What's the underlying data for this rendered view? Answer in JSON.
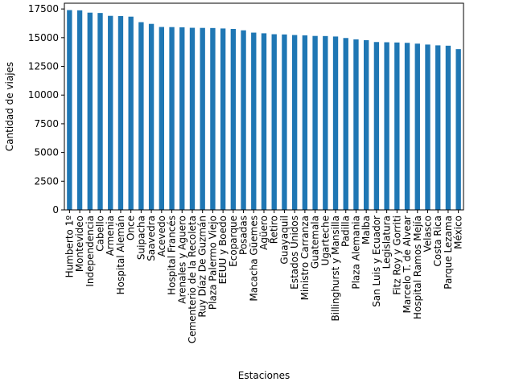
{
  "chart_data": {
    "type": "bar",
    "title": "",
    "xlabel": "Estaciones",
    "ylabel": "Cantidad de viajes",
    "ylim": [
      0,
      18000
    ],
    "yticks": [
      0,
      2500,
      5000,
      7500,
      10000,
      12500,
      15000,
      17500
    ],
    "ytick_labels": [
      "0",
      "2500",
      "5000",
      "7500",
      "10000",
      "12500",
      "15000",
      "17500"
    ],
    "grid": false,
    "legend": "none",
    "bar_color": "#1f77b4",
    "categories": [
      "Humberto 1º",
      "Montevideo",
      "Independencia",
      "Cabello",
      "Armenia",
      "Hospital Alemán",
      "Once",
      "Suipacha",
      "Saavedra",
      "Acevedo",
      "Hospital Francés",
      "Arenales y Aguero",
      "Cementerio de la Recoleta",
      "Ruy Díaz De Guzmán",
      "Plaza Palermo Viejo",
      "EEUU y Boedo",
      "Ecoparque",
      "Posadas",
      "Macacha Güemes",
      "Agüero",
      "Retiro",
      "Guayaquil",
      "Estados Unidos",
      "Ministro Carranza",
      "Guatemala",
      "Ugarteche",
      "Billinghurst y Mansilla",
      "Padilla",
      "Plaza Alemania",
      "Malba",
      "San Luis y Ecuador",
      "Legislatura",
      "Fitz Roy y Gorriti",
      "Marcelo T. de Alvear",
      "Hospital Ramos Mejía",
      "Velasco",
      "Costa Rica",
      "Parque Lezama",
      "México"
    ],
    "values": [
      17400,
      17380,
      17180,
      17150,
      16900,
      16880,
      16830,
      16350,
      16200,
      15930,
      15920,
      15900,
      15860,
      15850,
      15840,
      15800,
      15760,
      15640,
      15440,
      15380,
      15300,
      15280,
      15230,
      15200,
      15150,
      15140,
      15100,
      14970,
      14850,
      14780,
      14620,
      14600,
      14580,
      14550,
      14480,
      14400,
      14330,
      14300,
      14000
    ]
  }
}
